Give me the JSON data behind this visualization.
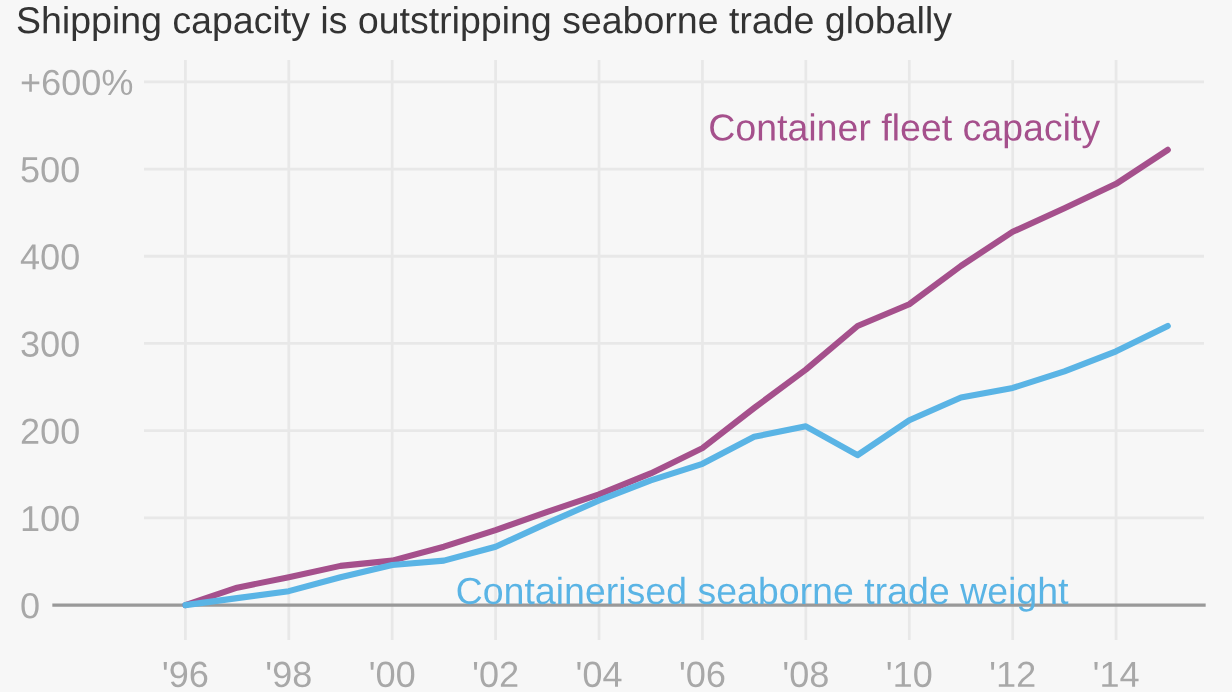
{
  "chart_data": {
    "type": "line",
    "title": "Shipping capacity is outstripping seaborne trade globally",
    "x": [
      1996,
      1997,
      1998,
      1999,
      2000,
      2001,
      2002,
      2003,
      2004,
      2005,
      2006,
      2007,
      2008,
      2009,
      2010,
      2011,
      2012,
      2013,
      2014,
      2015
    ],
    "series": [
      {
        "name": "Container fleet capacity",
        "color": "#a5508c",
        "values": [
          0,
          20,
          32,
          45,
          51,
          67,
          86,
          107,
          127,
          151,
          180,
          226,
          270,
          320,
          345,
          389,
          428,
          455,
          483,
          522
        ]
      },
      {
        "name": "Containerised seaborne trade weight",
        "color": "#5ab4e5",
        "values": [
          0,
          8,
          16,
          32,
          46,
          51,
          67,
          94,
          120,
          143,
          162,
          193,
          205,
          172,
          212,
          238,
          249,
          268,
          291,
          320
        ]
      }
    ],
    "xlim": [
      1995.2,
      2015.7
    ],
    "xticks": [
      {
        "value": 1996,
        "label": "'96"
      },
      {
        "value": 1998,
        "label": "'98"
      },
      {
        "value": 2000,
        "label": "'00"
      },
      {
        "value": 2002,
        "label": "'02"
      },
      {
        "value": 2004,
        "label": "'04"
      },
      {
        "value": 2006,
        "label": "'06"
      },
      {
        "value": 2008,
        "label": "'08"
      },
      {
        "value": 2010,
        "label": "'10"
      },
      {
        "value": 2012,
        "label": "'12"
      },
      {
        "value": 2014,
        "label": "'14"
      }
    ],
    "ylim": [
      -40,
      625
    ],
    "yticks": [
      0,
      100,
      200,
      300,
      400,
      500,
      {
        "value": 600,
        "label": "+600%"
      }
    ],
    "grid": true
  }
}
